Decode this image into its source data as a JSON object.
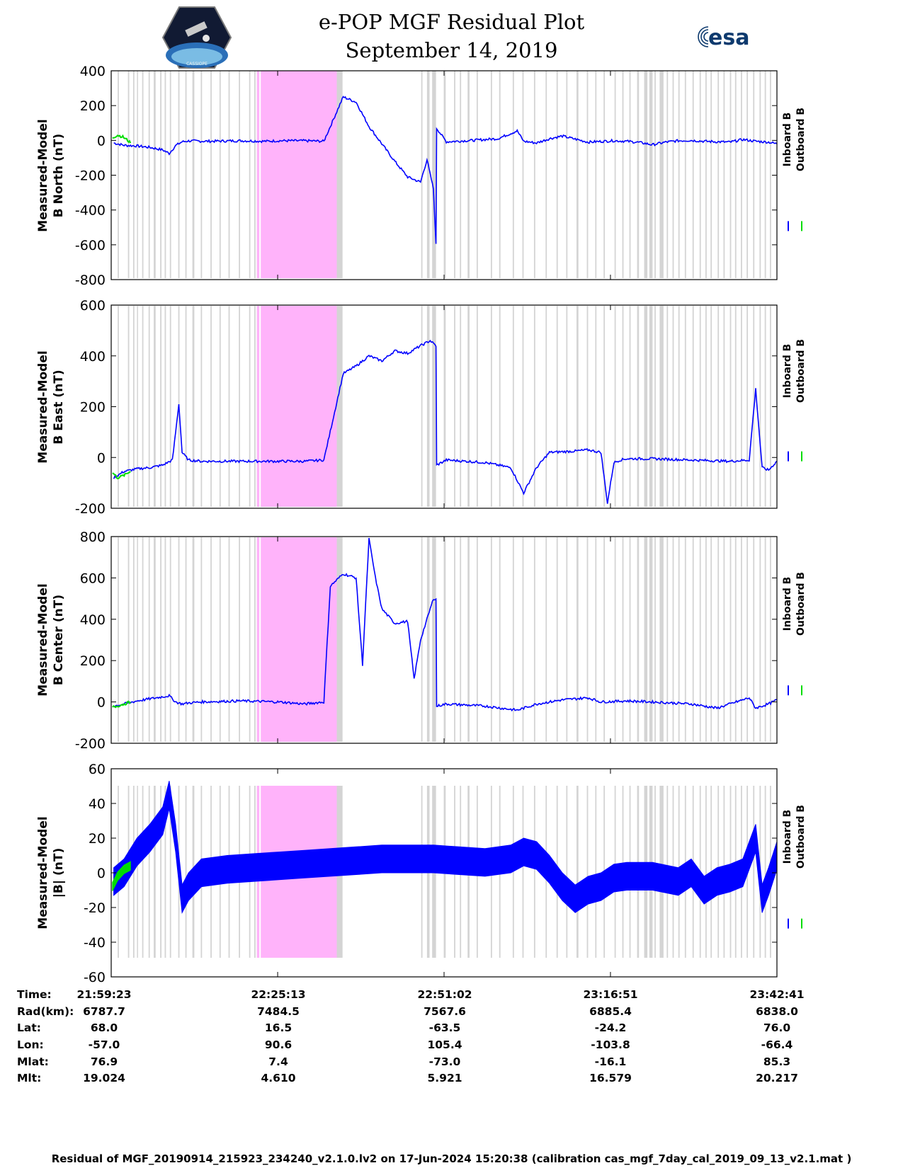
{
  "title_line1": "e-POP MGF Residual Plot",
  "title_line2": "September 14, 2019",
  "logos": {
    "left": "cassiope-logo",
    "right_text": "esa"
  },
  "colors": {
    "inboard": "#0000ff",
    "outboard": "#00dd00",
    "pink_band": "#ffb3fa",
    "gray_band": "#d4d4d4"
  },
  "legend": {
    "inboard": "Inboard B",
    "outboard": "Outboard B"
  },
  "x_ticks": [
    "21:59:23",
    "22:25:13",
    "22:51:02",
    "23:16:51",
    "23:42:41"
  ],
  "ephemeris": {
    "labels": [
      "Time:",
      "Rad(km):",
      "Lat:",
      "Lon:",
      "Mlat:",
      "Mlt:"
    ],
    "rows": [
      [
        "21:59:23",
        "22:25:13",
        "22:51:02",
        "23:16:51",
        "23:42:41"
      ],
      [
        "6787.7",
        "7484.5",
        "7567.6",
        "6885.4",
        "6838.0"
      ],
      [
        "68.0",
        "16.5",
        "-63.5",
        "-24.2",
        "76.0"
      ],
      [
        "-57.0",
        "90.6",
        "105.4",
        "-103.8",
        "-66.4"
      ],
      [
        "76.9",
        "7.4",
        "-73.0",
        "-16.1",
        "85.3"
      ],
      [
        "19.024",
        "4.610",
        "5.921",
        "16.579",
        "20.217"
      ]
    ]
  },
  "footer": "Residual of MGF_20190914_215923_234240_v2.1.0.lv2 on 17-Jun-2024 15:20:38 (calibration cas_mgf_7day_cal_2019_09_13_v2.1.mat )",
  "chart_data": [
    {
      "type": "line",
      "ylabel_line1": "Measured-Model",
      "ylabel_line2": "B North (nT)",
      "ylim": [
        -800,
        400
      ],
      "yticks": [
        "400",
        "200",
        "0",
        "-200",
        "-400",
        "-600",
        "-800"
      ],
      "yticks_values": [
        400,
        200,
        0,
        -200,
        -400,
        -600,
        -800
      ],
      "xlim_minutes": [
        0,
        103.3
      ],
      "series": [
        {
          "name": "Inboard B",
          "x": [
            0.4,
            2,
            4,
            6,
            8,
            9,
            10,
            11,
            12,
            15,
            20,
            24,
            26,
            30,
            33,
            36,
            38,
            40,
            42,
            44,
            46,
            48,
            49,
            50,
            50.4,
            50.5,
            52,
            56,
            60,
            63,
            64,
            66,
            68,
            70,
            74,
            78,
            80,
            82,
            84,
            86,
            88,
            90,
            92,
            94,
            96,
            98,
            100,
            102,
            103.3
          ],
          "values": [
            -15,
            -28,
            -32,
            -40,
            -55,
            -75,
            -30,
            -8,
            -3,
            -5,
            -2,
            -5,
            -2,
            -2,
            -5,
            250,
            220,
            80,
            -20,
            -120,
            -210,
            -240,
            -110,
            -280,
            -600,
            70,
            -8,
            0,
            10,
            55,
            -5,
            -15,
            10,
            25,
            -10,
            -2,
            -5,
            -12,
            -25,
            -10,
            -2,
            0,
            -5,
            -8,
            -10,
            5,
            -5,
            -10,
            -20
          ]
        },
        {
          "name": "Outboard B",
          "x": [
            0.2,
            1,
            1.8,
            2.4,
            3
          ],
          "values": [
            15,
            30,
            20,
            5,
            -15
          ]
        }
      ]
    },
    {
      "type": "line",
      "ylabel_line1": "Measured-Model",
      "ylabel_line2": "B East (nT)",
      "ylim": [
        -200,
        600
      ],
      "yticks": [
        "600",
        "400",
        "200",
        "0",
        "-200"
      ],
      "yticks_values": [
        600,
        400,
        200,
        0,
        -200
      ],
      "xlim_minutes": [
        0,
        103.3
      ],
      "series": [
        {
          "name": "Inboard B",
          "x": [
            0.4,
            2,
            4,
            6,
            8,
            9.5,
            10.5,
            11,
            12,
            14,
            20,
            26,
            30,
            33,
            36,
            38,
            40,
            42,
            44,
            46,
            48,
            49.5,
            50.4,
            50.5,
            52,
            58,
            62,
            64,
            66,
            68,
            72,
            74,
            76,
            77,
            78,
            79,
            80,
            84,
            90,
            96,
            99,
            100,
            101,
            102,
            103.3
          ],
          "values": [
            -80,
            -55,
            -45,
            -40,
            -30,
            -10,
            210,
            20,
            -10,
            -15,
            -15,
            -15,
            -15,
            -10,
            330,
            360,
            400,
            380,
            420,
            410,
            440,
            460,
            440,
            -30,
            -10,
            -20,
            -40,
            -140,
            -40,
            20,
            25,
            30,
            20,
            -180,
            -20,
            -10,
            -5,
            -5,
            -10,
            -15,
            -10,
            270,
            -40,
            -50,
            -15
          ]
        },
        {
          "name": "Outboard B",
          "x": [
            0.2,
            1,
            2,
            3
          ],
          "values": [
            -60,
            -80,
            -70,
            -55
          ]
        }
      ]
    },
    {
      "type": "line",
      "ylabel_line1": "Measured-Model",
      "ylabel_line2": "B Center (nT)",
      "ylim": [
        -200,
        800
      ],
      "yticks": [
        "800",
        "600",
        "400",
        "200",
        "0",
        "-200"
      ],
      "yticks_values": [
        800,
        600,
        400,
        200,
        0,
        -200
      ],
      "xlim_minutes": [
        0,
        103.3
      ],
      "series": [
        {
          "name": "Inboard B",
          "x": [
            0.4,
            2,
            4,
            6,
            8,
            9,
            10,
            11,
            12,
            14,
            20,
            26,
            30,
            33,
            34,
            36,
            38,
            39,
            40,
            41,
            42,
            44,
            46,
            47,
            48,
            50,
            50.4,
            50.5,
            52,
            58,
            63,
            66,
            70,
            74,
            76,
            80,
            84,
            90,
            94,
            96,
            99,
            100,
            102,
            103.3
          ],
          "values": [
            -20,
            -10,
            5,
            15,
            25,
            30,
            0,
            -10,
            -5,
            0,
            5,
            0,
            -10,
            0,
            560,
            620,
            600,
            180,
            790,
            600,
            450,
            380,
            390,
            110,
            300,
            500,
            500,
            -20,
            -10,
            -20,
            -40,
            -10,
            10,
            20,
            0,
            5,
            0,
            -10,
            -30,
            -10,
            20,
            -30,
            -10,
            10
          ]
        },
        {
          "name": "Outboard B",
          "x": [
            0.2,
            1,
            2,
            3
          ],
          "values": [
            -25,
            -20,
            -10,
            0
          ]
        }
      ]
    },
    {
      "type": "line",
      "ylabel_line1": "Measured-Model",
      "ylabel_line2": "|B| (nT)",
      "ylim": [
        -60,
        60
      ],
      "yticks": [
        "60",
        "40",
        "20",
        "0",
        "-20",
        "-40",
        "-60"
      ],
      "yticks_values": [
        60,
        40,
        20,
        0,
        -20,
        -40,
        -60
      ],
      "xlim_minutes": [
        0,
        103.3
      ],
      "series": [
        {
          "name": "Inboard B",
          "x": [
            0.4,
            2,
            4,
            6,
            8,
            9,
            10,
            11,
            12,
            14,
            18,
            22,
            26,
            30,
            34,
            38,
            42,
            46,
            50,
            54,
            58,
            62,
            64,
            66,
            68,
            70,
            72,
            74,
            76,
            78,
            80,
            84,
            88,
            90,
            92,
            94,
            96,
            98,
            100,
            101,
            102,
            103.3
          ],
          "values": [
            -5,
            0,
            12,
            20,
            30,
            45,
            20,
            -15,
            -8,
            0,
            2,
            3,
            4,
            5,
            6,
            7,
            8,
            8,
            8,
            7,
            6,
            8,
            12,
            10,
            2,
            -8,
            -15,
            -10,
            -8,
            -3,
            -2,
            -2,
            -5,
            0,
            -10,
            -5,
            -3,
            0,
            20,
            -15,
            -5,
            10
          ],
          "band_nT": 16
        },
        {
          "name": "Outboard B",
          "x": [
            0.2,
            1,
            2,
            3
          ],
          "values": [
            -8,
            -2,
            2,
            4
          ],
          "band_nT": 5
        }
      ]
    }
  ],
  "shaded_regions": {
    "pink_minutes": [
      [
        22.6,
        35.0
      ]
    ],
    "pink_edge_line_minutes": 23.1,
    "gray_minutes": [
      [
        1.0,
        1.2
      ],
      [
        2.6,
        2.8
      ],
      [
        3.4,
        3.6
      ],
      [
        4.0,
        4.15
      ],
      [
        4.8,
        5.0
      ],
      [
        5.8,
        6.0
      ],
      [
        6.6,
        6.9
      ],
      [
        7.6,
        7.8
      ],
      [
        8.3,
        8.5
      ],
      [
        9.1,
        9.3
      ],
      [
        10.4,
        10.6
      ],
      [
        11.5,
        11.7
      ],
      [
        12.6,
        12.9
      ],
      [
        13.9,
        14.1
      ],
      [
        15.4,
        15.6
      ],
      [
        16.8,
        17.0
      ],
      [
        18.2,
        18.4
      ],
      [
        19.8,
        20.0
      ],
      [
        21.4,
        21.6
      ],
      [
        22.2,
        22.4
      ],
      [
        35.0,
        35.9
      ],
      [
        48.1,
        48.3
      ],
      [
        49.0,
        49.4
      ],
      [
        49.8,
        50.4
      ],
      [
        51.6,
        51.9
      ],
      [
        53.2,
        53.4
      ],
      [
        54.1,
        54.3
      ],
      [
        55.3,
        55.6
      ],
      [
        56.7,
        56.9
      ],
      [
        58.9,
        59.1
      ],
      [
        60.2,
        60.4
      ],
      [
        62.3,
        62.5
      ],
      [
        63.8,
        64.0
      ],
      [
        65.6,
        65.8
      ],
      [
        67.4,
        67.6
      ],
      [
        69.1,
        69.3
      ],
      [
        70.6,
        70.8
      ],
      [
        72.2,
        72.5
      ],
      [
        73.8,
        74.0
      ],
      [
        75.1,
        75.3
      ],
      [
        76.4,
        76.6
      ],
      [
        78.1,
        78.3
      ],
      [
        79.3,
        79.5
      ],
      [
        80.4,
        80.6
      ],
      [
        81.6,
        81.9
      ],
      [
        82.7,
        83.2
      ],
      [
        83.5,
        84.0
      ],
      [
        84.3,
        84.5
      ],
      [
        85.1,
        85.7
      ],
      [
        86.2,
        86.4
      ],
      [
        87.1,
        87.3
      ],
      [
        88.0,
        88.2
      ],
      [
        89.0,
        89.2
      ],
      [
        90.2,
        90.4
      ],
      [
        91.3,
        91.5
      ],
      [
        92.2,
        92.4
      ],
      [
        93.0,
        93.2
      ],
      [
        94.1,
        94.3
      ],
      [
        95.0,
        95.2
      ],
      [
        96.0,
        96.2
      ],
      [
        96.8,
        97.0
      ],
      [
        97.7,
        97.9
      ],
      [
        98.6,
        98.8
      ],
      [
        99.6,
        99.8
      ],
      [
        100.6,
        100.8
      ],
      [
        101.4,
        101.6
      ],
      [
        102.2,
        102.4
      ]
    ]
  }
}
